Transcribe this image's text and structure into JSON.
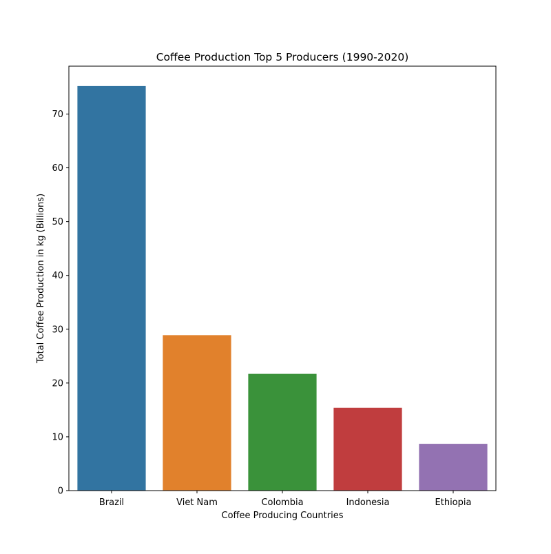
{
  "chart_data": {
    "type": "bar",
    "title": "Coffee Production Top 5 Producers (1990-2020)",
    "xlabel": "Coffee Producing Countries",
    "ylabel": "Total Coffee Production in kg (Billions)",
    "categories": [
      "Brazil",
      "Viet Nam",
      "Colombia",
      "Indonesia",
      "Ethiopia"
    ],
    "values": [
      75.2,
      28.9,
      21.7,
      15.4,
      8.7
    ],
    "colors": [
      "#3274a1",
      "#e1812c",
      "#3a923a",
      "#c03d3e",
      "#9372b2"
    ],
    "ylim": [
      0,
      78.9
    ],
    "yticks": [
      0,
      10,
      20,
      30,
      40,
      50,
      60,
      70
    ],
    "grid": false,
    "legend": "none"
  }
}
